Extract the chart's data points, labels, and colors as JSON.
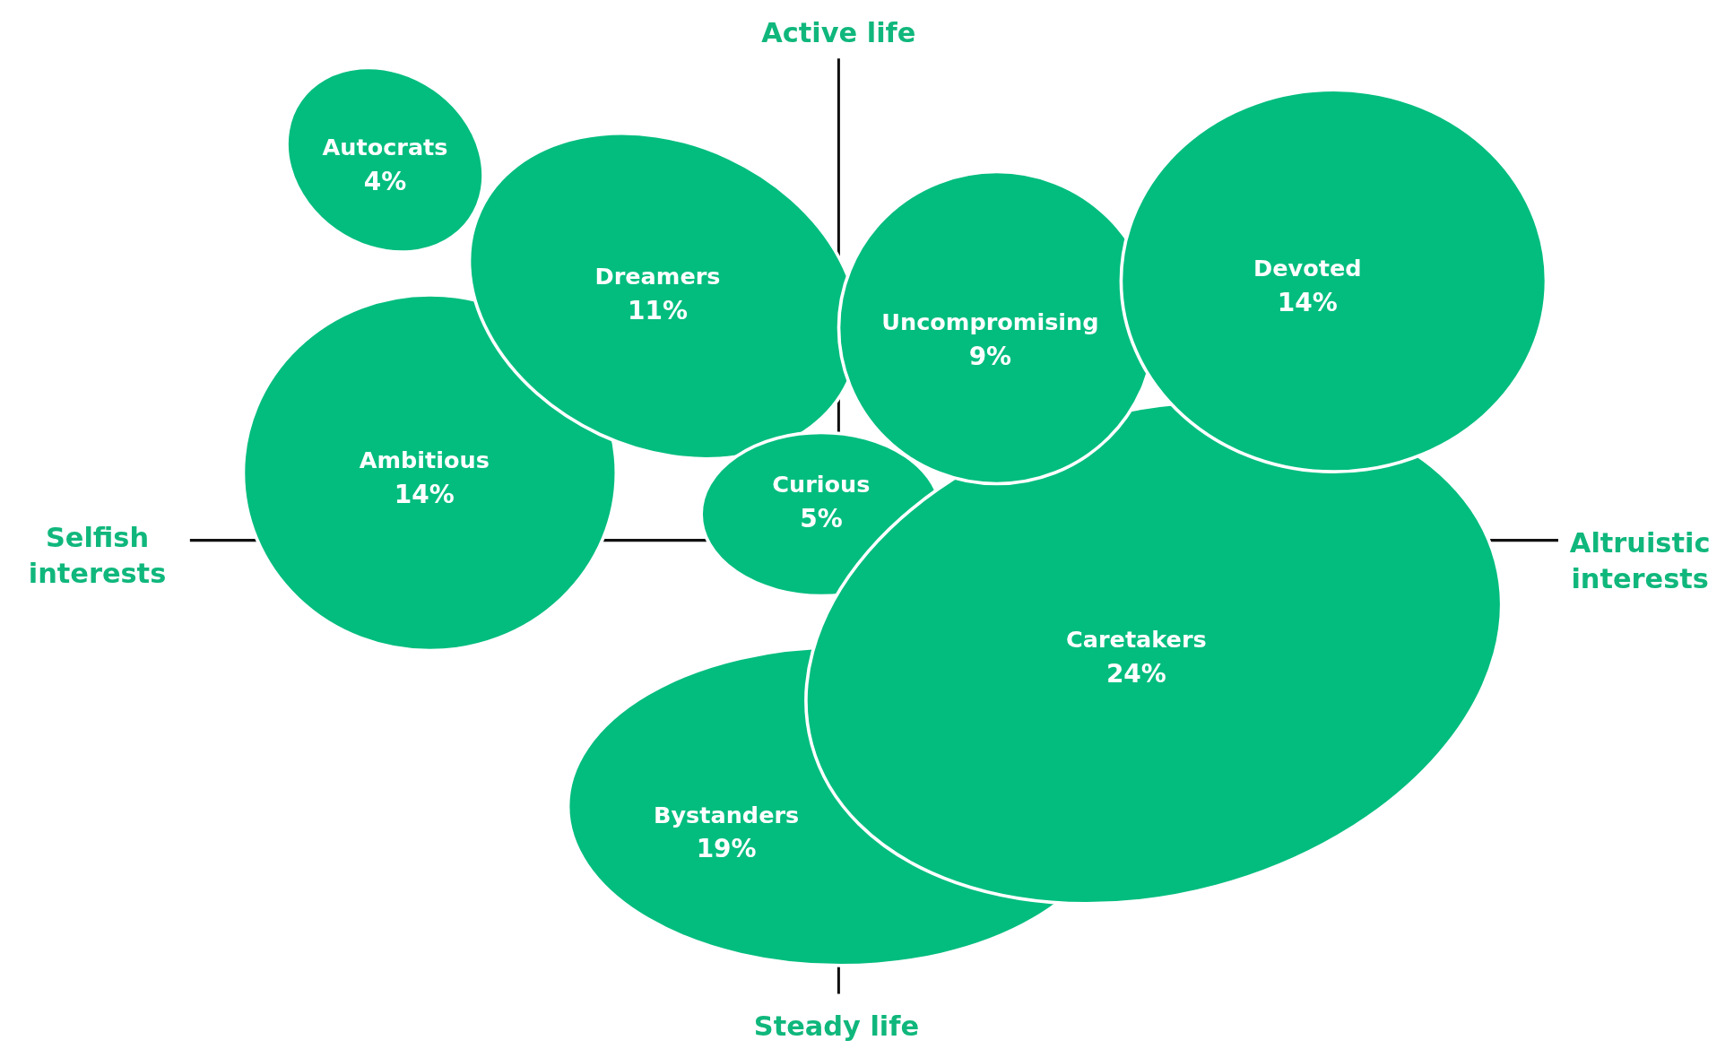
{
  "chart_data": {
    "type": "other",
    "categories": [
      "Autocrats",
      "Dreamers",
      "Ambitious",
      "Curious",
      "Uncompromising",
      "Devoted",
      "Caretakers",
      "Bystanders"
    ],
    "values": [
      4,
      11,
      14,
      5,
      9,
      14,
      24,
      19
    ],
    "value_labels": [
      "4%",
      "11%",
      "14%",
      "5%",
      "9%",
      "14%",
      "24%",
      "19%"
    ],
    "color": "#02bd7e",
    "annotations": [
      "Active life",
      "Steady life",
      "Selfish interests",
      "Altruistic interests"
    ]
  }
}
